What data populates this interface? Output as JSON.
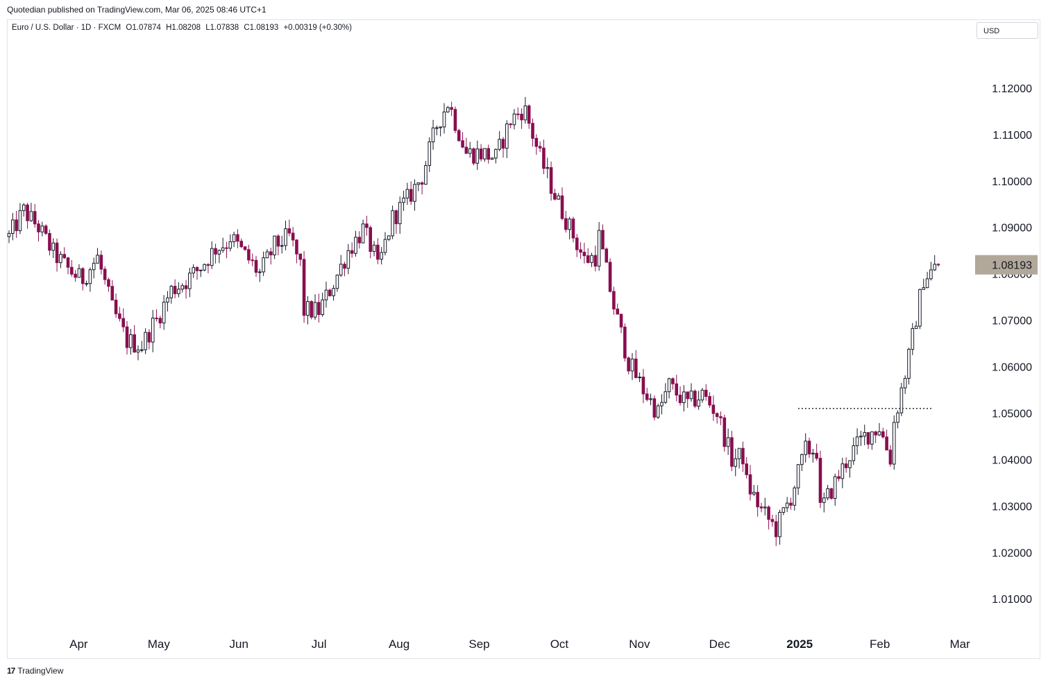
{
  "header": {
    "published": "Quotedian published on TradingView.com, Mar 06, 2025 08:46 UTC+1"
  },
  "legend": {
    "symbol": "Euro / U.S. Dollar · 1D · FXCM",
    "open": "O1.07874",
    "high": "H1.08208",
    "low": "L1.07838",
    "close": "C1.08193",
    "change": "+0.00319 (+0.30%)"
  },
  "currency": "USD",
  "footer": {
    "brand": "TradingView",
    "logo_glyph": "17"
  },
  "colors": {
    "up": "#131722",
    "down": "#880e4f",
    "price_label_bg": "#b2a89a",
    "grid_text": "#131722"
  },
  "chart_data": {
    "type": "candlestick",
    "title": "Euro / U.S. Dollar · 1D · FXCM",
    "ylim": [
      1.0045,
      1.13
    ],
    "y_ticks": [
      "1.12000",
      "1.11000",
      "1.10000",
      "1.09000",
      "1.08000",
      "1.07000",
      "1.06000",
      "1.05000",
      "1.04000",
      "1.03000",
      "1.02000",
      "1.01000"
    ],
    "x_ticks": [
      {
        "label": "Apr",
        "month": "2024-04"
      },
      {
        "label": "May",
        "month": "2024-05"
      },
      {
        "label": "Jun",
        "month": "2024-06"
      },
      {
        "label": "Jul",
        "month": "2024-07"
      },
      {
        "label": "Aug",
        "month": "2024-08"
      },
      {
        "label": "Sep",
        "month": "2024-09"
      },
      {
        "label": "Oct",
        "month": "2024-10"
      },
      {
        "label": "Nov",
        "month": "2024-11"
      },
      {
        "label": "Dec",
        "month": "2024-12"
      },
      {
        "label": "2025",
        "month": "2025-01",
        "bold": true
      },
      {
        "label": "Feb",
        "month": "2025-02"
      },
      {
        "label": "Mar",
        "month": "2025-03"
      }
    ],
    "last_price_label": "1.08193",
    "last_price": 1.08193,
    "horizontal_line": {
      "level": 1.051,
      "style": "dotted",
      "from_month": "2024-12",
      "to_month": "2025-03"
    },
    "monthly_path": [
      {
        "month": "2024-03",
        "points": [
          1.088,
          1.0935,
          1.09,
          1.0845,
          1.081,
          1.0785
        ]
      },
      {
        "month": "2024-04",
        "points": [
          1.079,
          1.0835,
          1.0725,
          1.0655,
          1.0645,
          1.0705
        ]
      },
      {
        "month": "2024-05",
        "points": [
          1.07,
          1.0765,
          1.0785,
          1.0815,
          1.0855,
          1.087
        ]
      },
      {
        "month": "2024-06",
        "points": [
          1.088,
          1.084,
          1.08,
          1.086,
          1.088,
          1.08
        ]
      },
      {
        "month": "2024-07",
        "points": [
          1.072,
          1.072,
          1.078,
          1.085,
          1.0895,
          1.0825
        ]
      },
      {
        "month": "2024-08",
        "points": [
          1.081,
          1.092,
          1.096,
          1.101,
          1.112,
          1.1185
        ]
      },
      {
        "month": "2024-09",
        "points": [
          1.115,
          1.106,
          1.106,
          1.105,
          1.113,
          1.116
        ]
      },
      {
        "month": "2024-10",
        "points": [
          1.115,
          1.105,
          1.097,
          1.09,
          1.083,
          1.084
        ]
      },
      {
        "month": "2024-11",
        "points": [
          1.088,
          1.073,
          1.061,
          1.055,
          1.05,
          1.058
        ]
      },
      {
        "month": "2024-12",
        "points": [
          1.055,
          1.052,
          1.054,
          1.05,
          1.04,
          1.041
        ]
      },
      {
        "month": "2025-01",
        "points": [
          1.035,
          1.029,
          1.025,
          1.032,
          1.042,
          1.042
        ]
      },
      {
        "month": "2025-02",
        "points": [
          1.029,
          1.035,
          1.041,
          1.045,
          1.047,
          1.038
        ]
      },
      {
        "month": "2025-03",
        "points": [
          1.048,
          1.062,
          1.079,
          1.08193
        ]
      }
    ]
  }
}
